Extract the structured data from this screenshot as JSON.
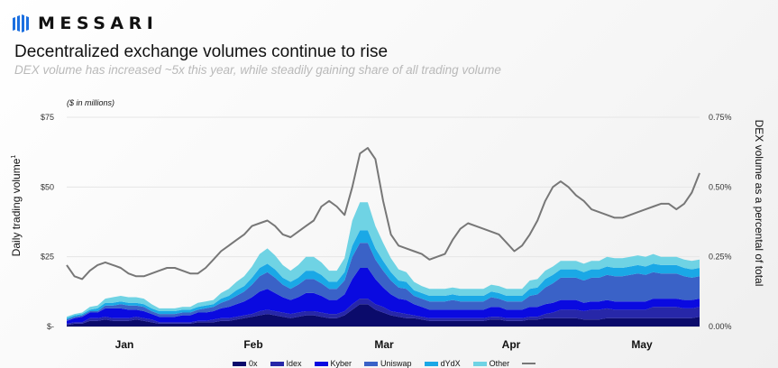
{
  "brand": {
    "name": "MESSARI"
  },
  "header": {
    "title": "Decentralized exchange volumes continue to rise",
    "subtitle": "DEX volume has increased ~5x this year, while steadily gaining share of all trading volume"
  },
  "chart_data": {
    "type": "area",
    "units_note": "($ in millions)",
    "ylabel_left": "Daily trading volume",
    "ylabel_left_mark": "1",
    "ylabel_right": "DEX volume as a percental of total",
    "x_labels": [
      "Jan",
      "Feb",
      "Mar",
      "Apr",
      "May"
    ],
    "y_left_ticks": [
      "$-",
      "$25",
      "$50",
      "$75"
    ],
    "y_left_range": [
      0,
      75
    ],
    "y_right_ticks": [
      "0.00%",
      "0.25%",
      "0.50%",
      "0.75%"
    ],
    "y_right_range": [
      0,
      0.75
    ],
    "x_range": [
      "Jan",
      "May"
    ],
    "legend_position": "bottom",
    "series": [
      {
        "name": "0x",
        "color": "#0b0b6b",
        "values": [
          0.5,
          1,
          1,
          2,
          2,
          2.5,
          2,
          2,
          2,
          2.5,
          2,
          1.5,
          1,
          1,
          1,
          1,
          1,
          1.5,
          1.5,
          1.5,
          2,
          2,
          2.5,
          3,
          3.5,
          4,
          4.5,
          4,
          3.5,
          3,
          3.5,
          4,
          4,
          3.5,
          3,
          3,
          4,
          6,
          8,
          8,
          6,
          5,
          4,
          3.5,
          3,
          3,
          2.5,
          2,
          2,
          2,
          2,
          2,
          2,
          2,
          2,
          2.5,
          2.5,
          2,
          2,
          2,
          2.5,
          2.5,
          3,
          3,
          3,
          3,
          3,
          2.5,
          2.5,
          2.5,
          3,
          3,
          3,
          3,
          3,
          3,
          3,
          3,
          3,
          3,
          3,
          3,
          3.5
        ]
      },
      {
        "name": "Idex",
        "color": "#2727a8",
        "values": [
          0.5,
          0.5,
          0.5,
          1,
          1,
          1,
          1,
          1,
          1,
          1,
          1,
          1,
          0.5,
          0.5,
          0.5,
          0.5,
          0.5,
          0.5,
          0.5,
          1,
          1,
          1,
          1,
          1,
          1,
          1.5,
          1.5,
          1.5,
          1.5,
          1.5,
          1.5,
          1.5,
          1.5,
          1.5,
          1.5,
          1.5,
          1.5,
          2,
          2,
          2,
          2,
          2,
          1.5,
          1.5,
          1.5,
          1,
          1,
          1,
          1,
          1,
          1,
          1,
          1,
          1,
          1,
          1,
          1,
          1,
          1,
          1,
          1,
          1,
          1.5,
          2,
          3,
          3,
          3,
          3,
          3.5,
          3.5,
          3.5,
          3,
          3,
          3,
          3,
          3,
          4,
          4,
          4,
          4,
          3.5,
          3.5,
          3.5
        ]
      },
      {
        "name": "Kyber",
        "color": "#0a0ae0",
        "values": [
          1,
          1.5,
          2,
          2,
          2,
          3,
          3.5,
          3.5,
          3,
          2.5,
          2.5,
          2,
          2,
          2,
          2,
          2.5,
          2.5,
          3,
          3,
          3,
          3.5,
          4,
          4.5,
          5,
          6,
          7,
          7.5,
          6.5,
          5.5,
          5,
          5.5,
          6.5,
          6.5,
          6,
          5,
          5,
          6,
          9,
          11,
          11,
          9,
          7,
          6,
          5,
          5,
          4,
          3.5,
          3,
          3,
          3,
          3,
          3,
          3,
          3,
          3,
          3.5,
          3.5,
          3,
          3,
          3,
          3.5,
          3.5,
          3.5,
          3.5,
          3.5,
          3.5,
          3.5,
          3,
          3,
          3,
          3,
          3,
          3,
          3,
          3,
          3,
          3,
          3,
          3,
          3,
          3,
          3,
          3
        ]
      },
      {
        "name": "Uniswap",
        "color": "#3a62c7",
        "values": [
          0.5,
          0.5,
          0.5,
          0.5,
          0.5,
          1,
          1,
          1.5,
          1.5,
          1.5,
          1.5,
          1,
          1,
          1,
          1,
          1,
          1,
          1,
          1.5,
          1.5,
          2,
          2.5,
          3,
          3.5,
          4.5,
          5.5,
          6,
          5.5,
          4.5,
          4,
          4.5,
          5,
          5,
          4.5,
          4,
          4,
          5,
          8,
          9,
          9,
          7,
          6,
          5,
          4,
          4,
          3,
          3,
          3,
          3,
          3,
          3.5,
          3,
          3,
          3,
          3,
          3.5,
          3,
          3,
          3,
          3,
          4,
          4.5,
          6,
          7,
          8,
          8,
          8,
          8,
          8.5,
          8.5,
          9,
          9,
          9,
          9.5,
          10,
          9.5,
          9.5,
          9,
          9,
          9,
          8.5,
          8,
          8
        ]
      },
      {
        "name": "dYdX",
        "color": "#1aa8e6",
        "values": [
          0.5,
          0.5,
          0.5,
          0.5,
          1,
          1,
          1,
          1,
          1,
          1,
          1,
          1,
          1,
          1,
          1,
          1,
          1,
          1,
          1,
          1,
          1.5,
          1.5,
          2,
          2,
          2.5,
          3,
          3,
          3,
          2.5,
          2.5,
          2.5,
          3,
          3,
          3,
          2.5,
          2.5,
          3,
          4,
          4.5,
          4.5,
          4,
          3.5,
          3,
          2.5,
          2.5,
          2,
          2,
          2,
          2,
          2,
          2,
          2,
          2,
          2,
          2,
          2,
          2,
          2,
          2,
          2,
          2.5,
          2.5,
          3,
          3,
          3,
          3,
          3,
          3,
          3,
          3,
          3,
          3,
          3,
          3,
          3,
          3,
          3,
          3,
          3,
          3,
          3,
          3,
          3
        ]
      },
      {
        "name": "Other",
        "color": "#6fd3e4",
        "values": [
          0.5,
          0.5,
          0.5,
          1,
          1,
          1.5,
          2,
          2,
          2,
          2,
          2,
          1.5,
          1,
          1,
          1,
          1,
          1,
          1.5,
          1.5,
          1.5,
          2,
          2.5,
          3,
          3.5,
          4,
          5,
          5.5,
          5,
          4.5,
          4,
          4.5,
          5,
          5,
          4.5,
          4,
          4,
          5,
          9,
          10,
          10,
          8,
          6.5,
          5,
          4,
          3.5,
          3,
          2.5,
          2.5,
          2.5,
          2.5,
          2.5,
          2.5,
          2.5,
          2.5,
          2.5,
          2.5,
          2.5,
          2.5,
          2.5,
          2.5,
          3,
          3,
          3,
          3,
          3,
          3,
          3,
          3,
          3,
          3,
          3.5,
          3.5,
          3.5,
          3.5,
          3.5,
          3.5,
          3.5,
          3,
          3,
          3,
          3,
          3,
          3
        ]
      },
      {
        "name": "",
        "color": "#777777",
        "axis": "right",
        "values": [
          0.22,
          0.18,
          0.17,
          0.2,
          0.22,
          0.23,
          0.22,
          0.21,
          0.19,
          0.18,
          0.18,
          0.19,
          0.2,
          0.21,
          0.21,
          0.2,
          0.19,
          0.19,
          0.21,
          0.24,
          0.27,
          0.29,
          0.31,
          0.33,
          0.36,
          0.37,
          0.38,
          0.36,
          0.33,
          0.32,
          0.34,
          0.36,
          0.38,
          0.43,
          0.45,
          0.43,
          0.4,
          0.5,
          0.62,
          0.64,
          0.6,
          0.45,
          0.33,
          0.29,
          0.28,
          0.27,
          0.26,
          0.24,
          0.25,
          0.26,
          0.31,
          0.35,
          0.37,
          0.36,
          0.35,
          0.34,
          0.33,
          0.3,
          0.27,
          0.29,
          0.33,
          0.38,
          0.45,
          0.5,
          0.52,
          0.5,
          0.47,
          0.45,
          0.42,
          0.41,
          0.4,
          0.39,
          0.39,
          0.4,
          0.41,
          0.42,
          0.43,
          0.44,
          0.44,
          0.42,
          0.44,
          0.48,
          0.55
        ]
      }
    ]
  },
  "footnotes": {
    "superscript": "1"
  }
}
